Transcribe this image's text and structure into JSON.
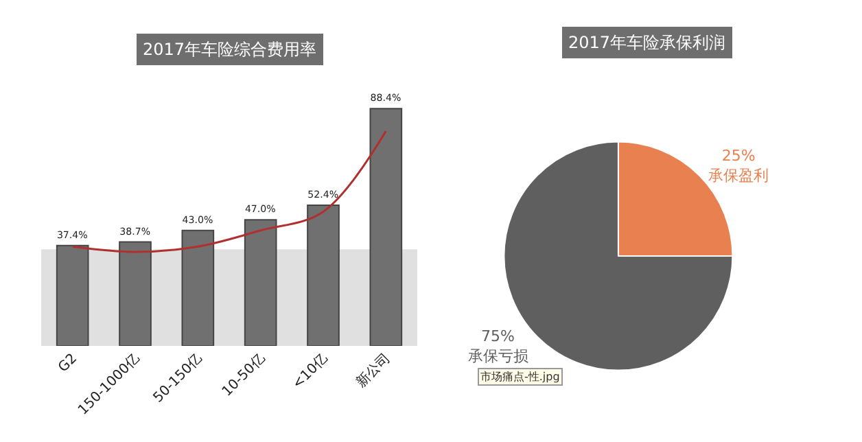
{
  "chart_data": [
    {
      "type": "bar",
      "title": "2017年车险综合费用率",
      "categories": [
        "G2",
        "150-1000亿",
        "50-150亿",
        "10-50亿",
        "<10亿",
        "新公司"
      ],
      "series": [
        {
          "type": "bar",
          "color": "#707070",
          "values": [
            37.4,
            38.7,
            43.0,
            47.0,
            52.4,
            88.4
          ],
          "value_labels": [
            "37.4%",
            "38.7%",
            "43.0%",
            "47.0%",
            "52.4%",
            "88.4%"
          ]
        },
        {
          "type": "line",
          "color": "#b03030",
          "values": [
            37,
            35,
            37,
            43,
            50,
            80
          ]
        }
      ],
      "bands": [
        {
          "axis": "y",
          "from": 0,
          "to": 36,
          "color": "#e0e0e0"
        }
      ],
      "legend": false
    },
    {
      "type": "pie",
      "title": "2017年车险承保利润",
      "categories": [
        "承保盈利",
        "承保亏损"
      ],
      "values": [
        25,
        75
      ],
      "colors": [
        "#e8804f",
        "#5f5f5f"
      ],
      "value_labels": [
        "25%",
        "75%"
      ],
      "annotations": [
        "市场痛点-性.jpg"
      ],
      "legend": false
    }
  ]
}
